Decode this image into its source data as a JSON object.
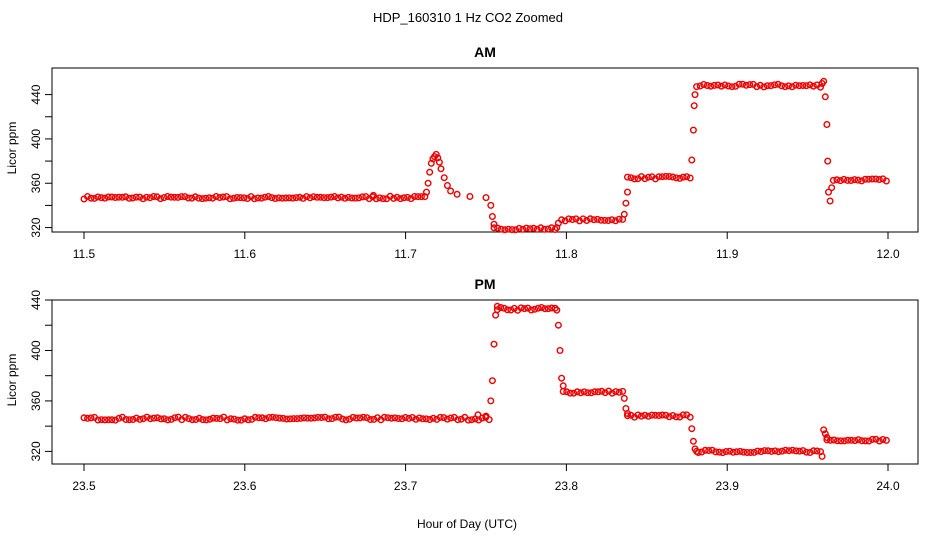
{
  "figure": {
    "title": "HDP_160310  1 Hz CO2 Zoomed",
    "xlabel": "Hour of Day (UTC)",
    "series_color": "#ee0000"
  },
  "chart_data": [
    {
      "type": "scatter",
      "title": "AM",
      "xlabel": "",
      "ylabel": "Licor ppm",
      "xlim": [
        11.5,
        12.0
      ],
      "ylim": [
        316,
        464
      ],
      "xticks": [
        "11.5",
        "11.6",
        "11.7",
        "11.8",
        "11.9",
        "12.0"
      ],
      "yticks": [
        "320",
        "360",
        "400",
        "440"
      ],
      "grid": false,
      "marker": "open-circle",
      "color": "#ee0000",
      "segments": [
        {
          "x0": 11.5,
          "x1": 11.712,
          "y": 347,
          "jitter": 1.2
        },
        {
          "x0": 11.755,
          "x1": 11.793,
          "y": 319,
          "jitter": 1
        },
        {
          "x0": 11.797,
          "x1": 11.835,
          "y": 327,
          "jitter": 1
        },
        {
          "x0": 11.838,
          "x1": 11.877,
          "y": 365,
          "jitter": 1.2
        },
        {
          "x0": 11.881,
          "x1": 11.958,
          "y": 448,
          "jitter": 1.4
        },
        {
          "x0": 11.966,
          "x1": 11.999,
          "y": 363,
          "jitter": 1
        }
      ],
      "points": [
        [
          11.68,
          349
        ],
        [
          11.713,
          352
        ],
        [
          11.714,
          360
        ],
        [
          11.715,
          370
        ],
        [
          11.716,
          378
        ],
        [
          11.717,
          382
        ],
        [
          11.718,
          384
        ],
        [
          11.719,
          386
        ],
        [
          11.72,
          383
        ],
        [
          11.721,
          379
        ],
        [
          11.722,
          373
        ],
        [
          11.724,
          365
        ],
        [
          11.726,
          358
        ],
        [
          11.728,
          353
        ],
        [
          11.732,
          350
        ],
        [
          11.74,
          348
        ],
        [
          11.75,
          347
        ],
        [
          11.753,
          340
        ],
        [
          11.754,
          330
        ],
        [
          11.755,
          323
        ],
        [
          11.794,
          320
        ],
        [
          11.795,
          324
        ],
        [
          11.836,
          332
        ],
        [
          11.837,
          342
        ],
        [
          11.838,
          352
        ],
        [
          11.878,
          381
        ],
        [
          11.879,
          408
        ],
        [
          11.8795,
          430
        ],
        [
          11.88,
          440
        ],
        [
          11.959,
          450
        ],
        [
          11.96,
          452
        ],
        [
          11.961,
          438
        ],
        [
          11.962,
          413
        ],
        [
          11.9625,
          380
        ],
        [
          11.963,
          352
        ],
        [
          11.964,
          344
        ],
        [
          11.965,
          356
        ]
      ]
    },
    {
      "type": "scatter",
      "title": "PM",
      "xlabel": "",
      "ylabel": "Licor ppm",
      "xlim": [
        23.5,
        24.0
      ],
      "ylim": [
        310,
        440
      ],
      "xticks": [
        "23.5",
        "23.6",
        "23.7",
        "23.8",
        "23.9",
        "24.0"
      ],
      "yticks": [
        "320",
        "360",
        "400",
        "440"
      ],
      "grid": false,
      "marker": "open-circle",
      "color": "#ee0000",
      "segments": [
        {
          "x0": 23.5,
          "x1": 23.752,
          "y": 346,
          "jitter": 1.2
        },
        {
          "x0": 23.757,
          "x1": 23.793,
          "y": 433,
          "jitter": 1.2
        },
        {
          "x0": 23.798,
          "x1": 23.835,
          "y": 367,
          "jitter": 1
        },
        {
          "x0": 23.838,
          "x1": 23.877,
          "y": 348,
          "jitter": 1
        },
        {
          "x0": 23.882,
          "x1": 23.958,
          "y": 320,
          "jitter": 1
        },
        {
          "x0": 23.962,
          "x1": 23.999,
          "y": 329,
          "jitter": 0.8
        }
      ],
      "points": [
        [
          23.745,
          349
        ],
        [
          23.75,
          348
        ],
        [
          23.753,
          360
        ],
        [
          23.754,
          376
        ],
        [
          23.755,
          405
        ],
        [
          23.756,
          428
        ],
        [
          23.757,
          435
        ],
        [
          23.794,
          432
        ],
        [
          23.795,
          420
        ],
        [
          23.796,
          400
        ],
        [
          23.797,
          378
        ],
        [
          23.798,
          372
        ],
        [
          23.836,
          362
        ],
        [
          23.837,
          354
        ],
        [
          23.838,
          350
        ],
        [
          23.878,
          338
        ],
        [
          23.879,
          328
        ],
        [
          23.88,
          322
        ],
        [
          23.881,
          320
        ],
        [
          23.959,
          316
        ],
        [
          23.96,
          337
        ],
        [
          23.961,
          334
        ],
        [
          23.962,
          331
        ]
      ]
    }
  ]
}
